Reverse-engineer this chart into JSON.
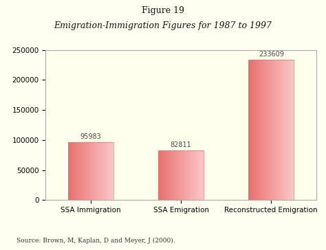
{
  "title_line1": "Figure 19",
  "title_line2": "Emigration-Immigration Figures for 1987 to 1997",
  "categories": [
    "SSA Immigration",
    "SSA Emigration",
    "Reconstructed Emigration"
  ],
  "values": [
    95983,
    82811,
    233609
  ],
  "bar_color_dark": "#e87070",
  "bar_color_light": "#fac8c8",
  "ylim": [
    0,
    250000
  ],
  "yticks": [
    0,
    50000,
    100000,
    150000,
    200000,
    250000
  ],
  "source_text": "Source: Brown, M, Kaplan, D and Meyer, J (2000).",
  "background_color": "#fffff0",
  "plot_bg_color": "#ffffee",
  "label_fontsize": 7.5,
  "value_fontsize": 7,
  "title1_fontsize": 9,
  "title2_fontsize": 9
}
